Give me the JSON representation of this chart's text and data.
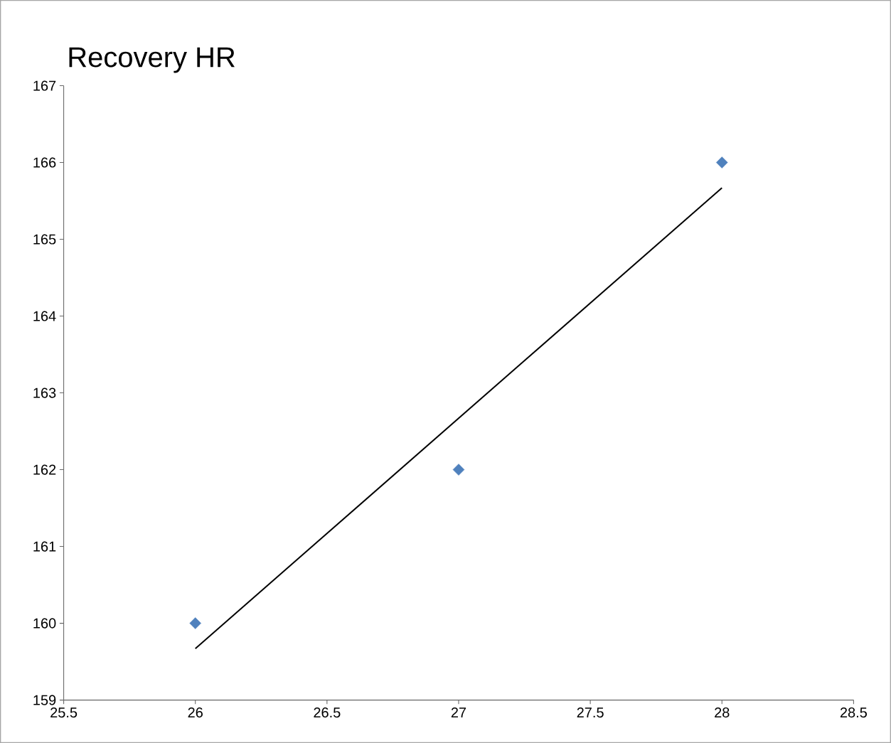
{
  "chart_data": {
    "type": "scatter",
    "title": "Recovery  HR",
    "series": [
      {
        "type": "scatter",
        "x": [
          26,
          27,
          28
        ],
        "values": [
          160,
          162,
          166
        ],
        "color": "#4f81bd",
        "marker": "diamond"
      },
      {
        "type": "line",
        "x": [
          26,
          28
        ],
        "values": [
          159.67,
          165.67
        ],
        "color": "#000000",
        "marker": "none"
      }
    ],
    "xlim": [
      25.5,
      28.5
    ],
    "xticks": [
      25.5,
      26,
      26.5,
      27,
      27.5,
      28,
      28.5
    ],
    "ylim": [
      159,
      167
    ],
    "yticks": [
      159,
      160,
      161,
      162,
      163,
      164,
      165,
      166,
      167
    ],
    "grid": false
  }
}
